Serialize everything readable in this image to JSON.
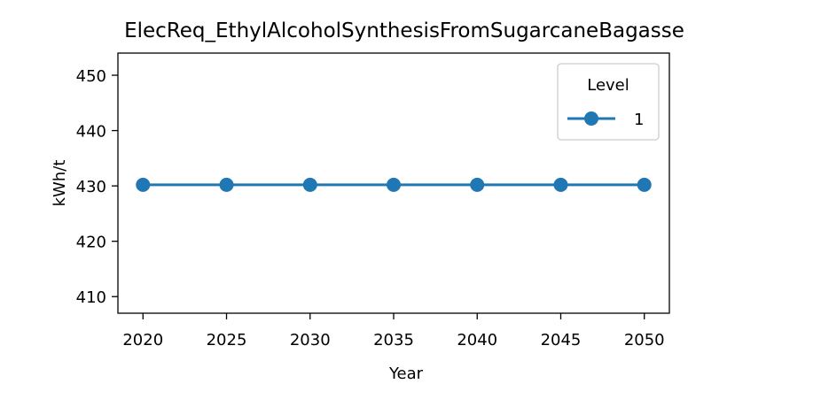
{
  "chart_data": {
    "type": "line",
    "title": "ElecReq_EthylAlcoholSynthesisFromSugarcaneBagasse",
    "xlabel": "Year",
    "ylabel": "kWh/t",
    "x": [
      2020,
      2025,
      2030,
      2035,
      2040,
      2045,
      2050
    ],
    "x_ticks": [
      "2020",
      "2025",
      "2030",
      "2035",
      "2040",
      "2045",
      "2050"
    ],
    "y_ticks": [
      "410",
      "420",
      "430",
      "440",
      "450"
    ],
    "xlim": [
      2018.5,
      2051.5
    ],
    "ylim": [
      407,
      454
    ],
    "grid": false,
    "legend": {
      "title": "Level",
      "placement": "top-right"
    },
    "series": [
      {
        "name": "1",
        "color": "#1f77b4",
        "marker": "circle",
        "values": [
          430.2,
          430.2,
          430.2,
          430.2,
          430.2,
          430.2,
          430.2
        ]
      }
    ]
  }
}
